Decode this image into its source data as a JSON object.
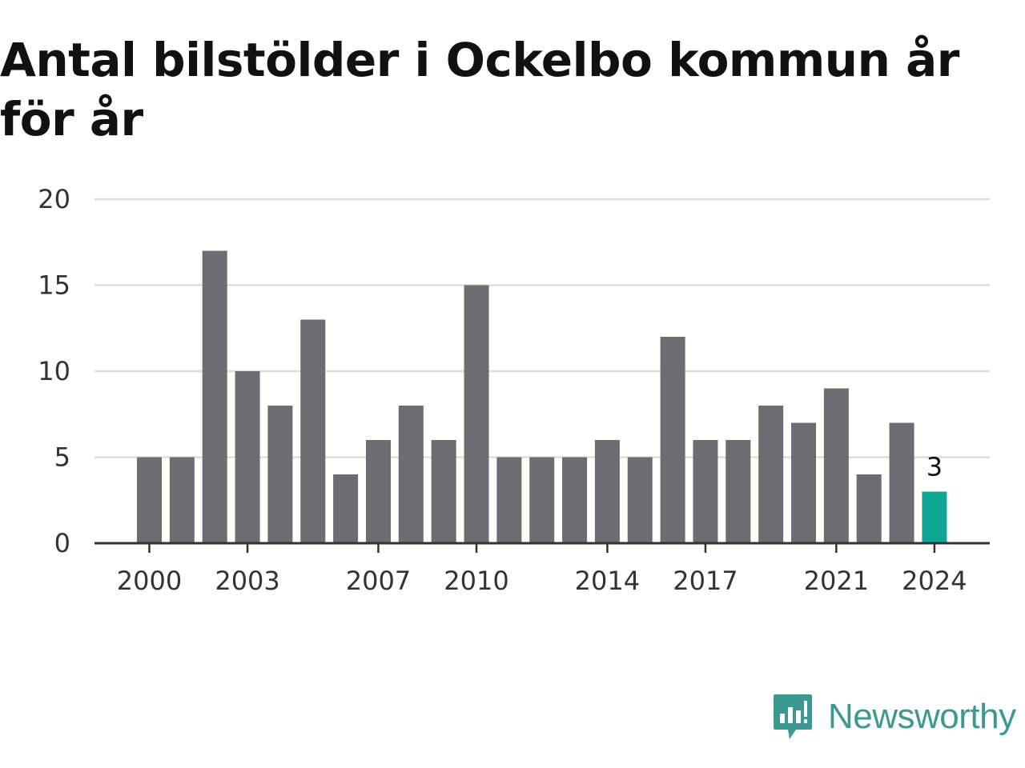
{
  "chart_data": {
    "type": "bar",
    "title": "Antal bilstölder i Ockelbo kommun år för år",
    "xlabel": "",
    "ylabel": "",
    "categories": [
      "2000",
      "2001",
      "2002",
      "2003",
      "2004",
      "2005",
      "2006",
      "2007",
      "2008",
      "2009",
      "2010",
      "2011",
      "2012",
      "2013",
      "2014",
      "2015",
      "2016",
      "2017",
      "2018",
      "2019",
      "2020",
      "2021",
      "2022",
      "2023",
      "2024"
    ],
    "values": [
      5,
      5,
      17,
      10,
      8,
      13,
      4,
      6,
      8,
      6,
      15,
      5,
      5,
      5,
      6,
      5,
      12,
      6,
      6,
      8,
      7,
      9,
      4,
      7,
      3
    ],
    "ylim": [
      0,
      20
    ],
    "yticks": [
      0,
      5,
      10,
      15,
      20
    ],
    "yticklabels": [
      "0",
      "5",
      "10",
      "15",
      "20"
    ],
    "xticks": [
      "2000",
      "2003",
      "2007",
      "2010",
      "2014",
      "2017",
      "2021",
      "2024"
    ],
    "highlight": {
      "category": "2024",
      "label": "3"
    },
    "grid": true,
    "legend": "none",
    "colors": {
      "bar": "#6d6c72",
      "highlight": "#0fa597",
      "grid": "#dddddd",
      "axis": "#333333"
    }
  },
  "brand": {
    "name": "Newsworthy",
    "icon": "newsworthy-logo-icon",
    "color": "#3a9a92"
  }
}
